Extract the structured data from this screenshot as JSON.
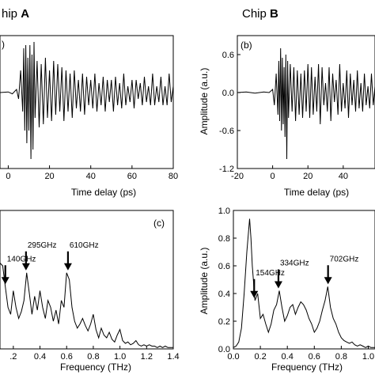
{
  "chart_data": [
    {
      "panel": "a",
      "type": "line",
      "heading": {
        "prefix": "hip ",
        "letter": "A"
      },
      "panel_label": ")",
      "xlabel": "Time delay (ps)",
      "ylabel": "",
      "xlim": [
        -4,
        80
      ],
      "ylim": [
        -1.2,
        0.9
      ],
      "xticks": [
        0,
        20,
        40,
        60,
        80
      ],
      "yticks": [],
      "annotations": [],
      "series": [
        {
          "x": [
            -4,
            0,
            2,
            4,
            5,
            6,
            7,
            7.5,
            8,
            8.5,
            9,
            9.5,
            10,
            10.5,
            11,
            11.5,
            12,
            12.5,
            13,
            14,
            15,
            16,
            17,
            18,
            19,
            20,
            21,
            22,
            23,
            24,
            25,
            26,
            27,
            28,
            29,
            30,
            31,
            32,
            33,
            34,
            35,
            36,
            37,
            38,
            39,
            40,
            41,
            42,
            43,
            44,
            45,
            46,
            47,
            48,
            49,
            50,
            51,
            52,
            53,
            54,
            55,
            56,
            57,
            58,
            59,
            60,
            61,
            62,
            63,
            64,
            65,
            66,
            67,
            68,
            69,
            70,
            71,
            72,
            73,
            74,
            75,
            76,
            77,
            78,
            79,
            80
          ],
          "y": [
            0.0,
            0.01,
            -0.02,
            0.05,
            -0.1,
            0.35,
            -0.3,
            0.7,
            -0.6,
            0.75,
            -0.8,
            0.55,
            -0.6,
            0.75,
            -1.05,
            0.6,
            -0.9,
            0.8,
            -0.4,
            0.5,
            -0.55,
            0.45,
            -0.5,
            0.55,
            -0.4,
            0.35,
            -0.45,
            0.5,
            -0.35,
            0.45,
            -0.3,
            0.4,
            -0.45,
            0.35,
            -0.3,
            0.3,
            -0.4,
            0.35,
            -0.25,
            0.2,
            -0.3,
            0.3,
            -0.35,
            0.25,
            -0.2,
            0.2,
            -0.25,
            0.3,
            -0.3,
            0.15,
            -0.2,
            0.25,
            -0.3,
            0.2,
            -0.15,
            0.2,
            -0.3,
            0.25,
            -0.2,
            0.15,
            -0.25,
            0.3,
            -0.2,
            0.1,
            -0.15,
            0.2,
            -0.25,
            0.2,
            -0.1,
            0.15,
            -0.2,
            0.25,
            -0.15,
            0.1,
            -0.2,
            0.3,
            -0.2,
            0.1,
            -0.15,
            0.25,
            -0.2,
            0.1,
            -0.2,
            0.3,
            -0.15,
            0.1
          ]
        }
      ]
    },
    {
      "panel": "b",
      "type": "line",
      "heading": {
        "prefix": "Chip ",
        "letter": "B"
      },
      "panel_label": "(b)",
      "xlabel": "Time delay (ps)",
      "ylabel": "Amplitude (a.u.)",
      "xlim": [
        -20,
        58
      ],
      "ylim": [
        -1.2,
        0.9
      ],
      "xticks": [
        -20,
        0,
        20,
        40
      ],
      "xticklabels": [
        "-20",
        "0",
        "20",
        "40"
      ],
      "yticks": [
        0.6,
        0.0,
        -0.6,
        -1.2
      ],
      "yticklabels": [
        "0.6",
        "0.0",
        "-0.6",
        "-1.2"
      ],
      "annotations": [],
      "series": [
        {
          "x": [
            -20,
            -15,
            -10,
            -5,
            -2,
            0,
            1,
            2,
            3,
            3.5,
            4,
            4.5,
            5,
            5.5,
            6,
            6.5,
            7,
            7.5,
            8,
            8.5,
            9,
            10,
            11,
            12,
            13,
            14,
            15,
            16,
            17,
            18,
            19,
            20,
            21,
            22,
            23,
            24,
            25,
            26,
            27,
            28,
            29,
            30,
            31,
            32,
            33,
            34,
            35,
            36,
            37,
            38,
            39,
            40,
            41,
            42,
            43,
            44,
            45,
            46,
            47,
            48,
            49,
            50,
            51,
            52,
            53,
            54,
            55,
            56,
            57,
            58
          ],
          "y": [
            0.0,
            0.01,
            -0.01,
            0.01,
            0.0,
            0.05,
            -0.2,
            0.3,
            -0.35,
            0.5,
            -0.45,
            0.7,
            -0.6,
            0.55,
            -0.5,
            0.4,
            -0.7,
            0.6,
            -1.05,
            0.5,
            -0.4,
            0.45,
            -0.3,
            0.4,
            -0.45,
            0.35,
            -0.35,
            0.3,
            -0.4,
            0.35,
            -0.3,
            0.45,
            -0.4,
            0.4,
            -0.35,
            0.25,
            -0.3,
            0.45,
            -0.5,
            0.4,
            -0.2,
            0.15,
            -0.3,
            0.4,
            -0.45,
            0.3,
            -0.15,
            0.2,
            -0.35,
            0.45,
            -0.3,
            0.15,
            -0.25,
            0.35,
            -0.4,
            0.3,
            -0.2,
            0.2,
            -0.3,
            0.35,
            -0.25,
            0.15,
            -0.3,
            0.3,
            -0.2,
            0.1,
            -0.25,
            0.3,
            -0.2,
            0.1
          ]
        }
      ]
    },
    {
      "panel": "c",
      "type": "line",
      "panel_label": "(c)",
      "xlabel": "Frequency (THz)",
      "ylabel": "",
      "xlim": [
        0.1,
        1.4
      ],
      "ylim": [
        0,
        1.0
      ],
      "xticks": [
        0.2,
        0.4,
        0.6,
        0.8,
        1.0,
        1.2,
        1.4
      ],
      "xticklabels": [
        ".2",
        "0.4",
        "0.6",
        "0.8",
        "1.0",
        "1.2",
        "1.4"
      ],
      "yticks": [],
      "annotations": [
        {
          "text": "140GHz",
          "x": 0.14
        },
        {
          "text": "295GHz",
          "x": 0.295
        },
        {
          "text": "610GHz",
          "x": 0.61
        }
      ],
      "series": [
        {
          "x": [
            0.1,
            0.12,
            0.14,
            0.16,
            0.18,
            0.2,
            0.22,
            0.24,
            0.26,
            0.28,
            0.3,
            0.32,
            0.34,
            0.36,
            0.38,
            0.4,
            0.42,
            0.44,
            0.46,
            0.48,
            0.5,
            0.52,
            0.54,
            0.56,
            0.58,
            0.6,
            0.62,
            0.64,
            0.66,
            0.68,
            0.7,
            0.72,
            0.74,
            0.76,
            0.78,
            0.8,
            0.82,
            0.84,
            0.86,
            0.88,
            0.9,
            0.92,
            0.94,
            0.96,
            0.98,
            1.0,
            1.02,
            1.04,
            1.06,
            1.08,
            1.1,
            1.12,
            1.14,
            1.16,
            1.18,
            1.2,
            1.22,
            1.24,
            1.26,
            1.28,
            1.3,
            1.32,
            1.34,
            1.36,
            1.38,
            1.4
          ],
          "y": [
            0.62,
            0.6,
            0.45,
            0.3,
            0.25,
            0.42,
            0.3,
            0.22,
            0.27,
            0.35,
            0.55,
            0.4,
            0.25,
            0.38,
            0.28,
            0.42,
            0.3,
            0.22,
            0.35,
            0.3,
            0.2,
            0.28,
            0.18,
            0.35,
            0.3,
            0.55,
            0.5,
            0.3,
            0.2,
            0.15,
            0.18,
            0.22,
            0.17,
            0.13,
            0.18,
            0.25,
            0.14,
            0.08,
            0.15,
            0.1,
            0.08,
            0.12,
            0.07,
            0.05,
            0.1,
            0.14,
            0.06,
            0.04,
            0.05,
            0.03,
            0.04,
            0.06,
            0.03,
            0.02,
            0.03,
            0.02,
            0.03,
            0.02,
            0.02,
            0.01,
            0.02,
            0.01,
            0.02,
            0.01,
            0.01,
            0.01
          ]
        }
      ]
    },
    {
      "panel": "d",
      "type": "line",
      "xlabel": "Frequency (THz)",
      "ylabel": "Amplitude (a.u.)",
      "xlim": [
        0.0,
        1.05
      ],
      "ylim": [
        0.0,
        1.0
      ],
      "xticks": [
        0.0,
        0.2,
        0.4,
        0.6,
        0.8,
        1.0
      ],
      "xticklabels": [
        "0.0",
        "0.2",
        "0.4",
        "0.6",
        "0.8",
        "1.0"
      ],
      "yticks": [
        0.0,
        0.2,
        0.4,
        0.6,
        0.8,
        1.0
      ],
      "yticklabels": [
        "0.0",
        "0.2",
        "0.4",
        "0.6",
        "0.8",
        "1.0"
      ],
      "annotations": [
        {
          "text": "154GHz",
          "x": 0.154
        },
        {
          "text": "334GHz",
          "x": 0.334
        },
        {
          "text": "702GHz",
          "x": 0.702
        }
      ],
      "series": [
        {
          "x": [
            0.0,
            0.02,
            0.04,
            0.06,
            0.08,
            0.1,
            0.12,
            0.13,
            0.14,
            0.16,
            0.18,
            0.2,
            0.22,
            0.24,
            0.26,
            0.28,
            0.3,
            0.32,
            0.34,
            0.36,
            0.38,
            0.4,
            0.42,
            0.44,
            0.46,
            0.48,
            0.5,
            0.52,
            0.54,
            0.56,
            0.58,
            0.6,
            0.62,
            0.64,
            0.66,
            0.68,
            0.7,
            0.72,
            0.74,
            0.76,
            0.78,
            0.8,
            0.82,
            0.84,
            0.86,
            0.88,
            0.9,
            0.92,
            0.94,
            0.96,
            0.98,
            1.0,
            1.02,
            1.05
          ],
          "y": [
            0.01,
            0.02,
            0.05,
            0.15,
            0.4,
            0.7,
            0.94,
            0.8,
            0.6,
            0.35,
            0.4,
            0.22,
            0.25,
            0.18,
            0.12,
            0.18,
            0.28,
            0.32,
            0.42,
            0.3,
            0.2,
            0.24,
            0.3,
            0.32,
            0.25,
            0.3,
            0.34,
            0.32,
            0.28,
            0.22,
            0.18,
            0.12,
            0.15,
            0.2,
            0.28,
            0.35,
            0.45,
            0.3,
            0.22,
            0.18,
            0.12,
            0.08,
            0.06,
            0.05,
            0.04,
            0.05,
            0.03,
            0.02,
            0.03,
            0.02,
            0.01,
            0.02,
            0.01,
            0.01
          ]
        }
      ]
    }
  ]
}
